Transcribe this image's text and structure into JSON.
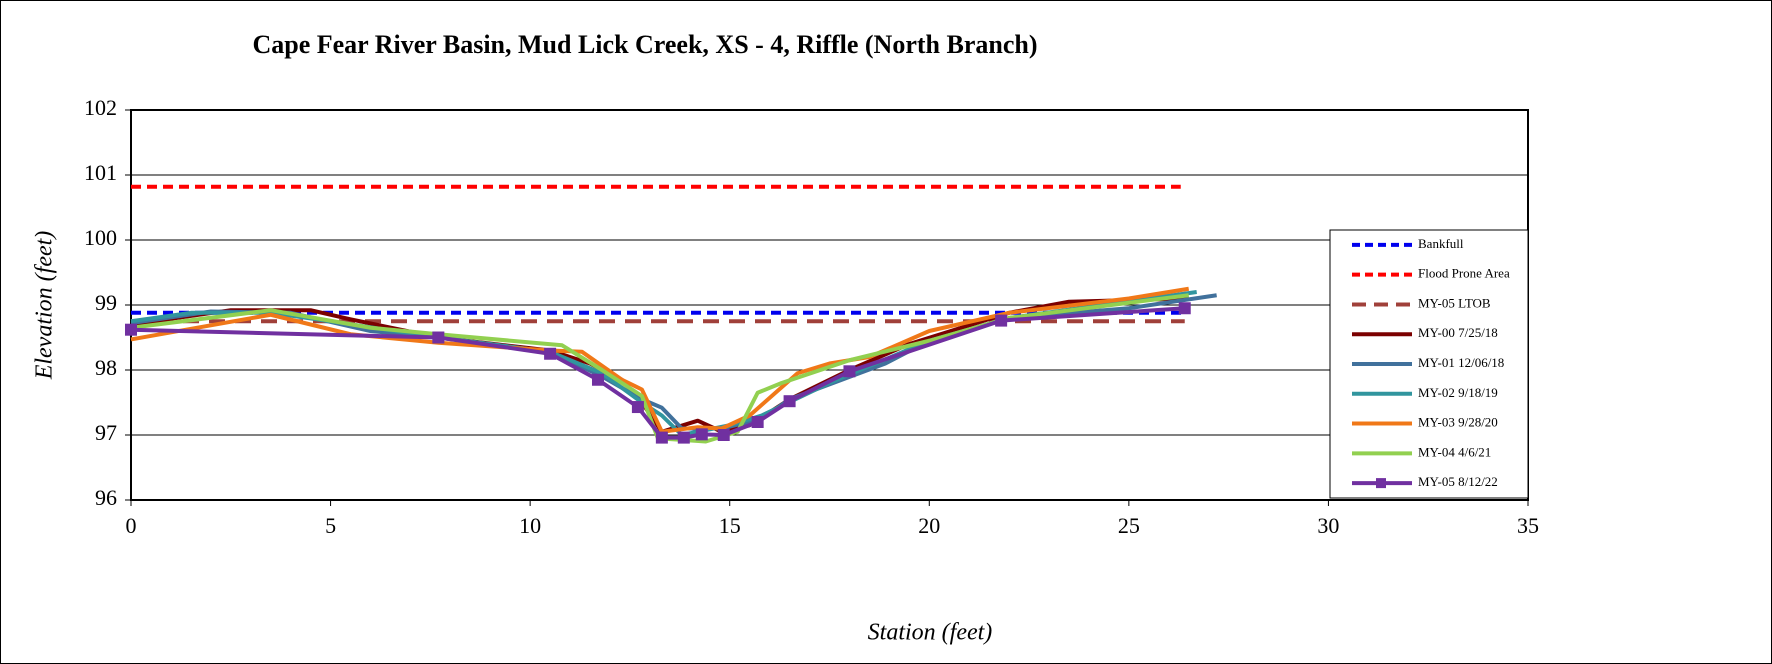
{
  "chart_data": {
    "type": "line",
    "title": "Cape Fear River Basin, Mud Lick Creek, XS - 4, Riffle (North Branch)",
    "xlabel": "Station (feet)",
    "ylabel": "Elevation (feet)",
    "xlim": [
      0,
      35
    ],
    "xticks": [
      0,
      5,
      10,
      15,
      20,
      25,
      30,
      35
    ],
    "ylim": [
      96,
      102
    ],
    "yticks": [
      96,
      97,
      98,
      99,
      100,
      101,
      102
    ],
    "grid": true,
    "legend": "right",
    "series": [
      {
        "name": "Bankfull",
        "color": "#0000ee",
        "dash": true,
        "x": [
          0,
          26.4
        ],
        "values": [
          98.88,
          98.88
        ]
      },
      {
        "name": "Flood Prone Area",
        "color": "#ff0000",
        "dash": true,
        "x": [
          0,
          26.3
        ],
        "values": [
          100.82,
          100.82
        ]
      },
      {
        "name": "MY-05 LTOB",
        "color": "#a0403a",
        "dash": true,
        "x": [
          0,
          26.4
        ],
        "values": [
          98.75,
          98.75
        ]
      },
      {
        "name": "MY-00 7/25/18",
        "color": "#7b0000",
        "x": [
          0,
          2.5,
          4.5,
          5.5,
          7.7,
          10.5,
          11.5,
          12.3,
          12.8,
          13.3,
          14.2,
          14.8,
          15.5,
          16.5,
          18,
          19.5,
          22,
          23.5,
          26.5
        ],
        "values": [
          98.7,
          98.92,
          98.92,
          98.78,
          98.5,
          98.3,
          98.1,
          97.85,
          97.5,
          97.05,
          97.22,
          97.05,
          97.15,
          97.55,
          98.0,
          98.4,
          98.88,
          99.05,
          99.1
        ]
      },
      {
        "name": "MY-01 12/06/18",
        "color": "#41719c",
        "x": [
          0,
          2,
          4,
          6,
          7.7,
          10.5,
          11.8,
          12.8,
          13.3,
          13.8,
          14.8,
          15.8,
          16.5,
          18.9,
          20,
          22,
          25,
          27.2
        ],
        "values": [
          98.72,
          98.9,
          98.88,
          98.6,
          98.5,
          98.28,
          97.9,
          97.55,
          97.42,
          97.1,
          97.1,
          97.25,
          97.55,
          98.1,
          98.45,
          98.8,
          98.95,
          99.15
        ]
      },
      {
        "name": "MY-02 9/18/19",
        "color": "#31959e",
        "x": [
          0,
          1.5,
          3.5,
          5,
          7.7,
          10.5,
          11.8,
          12.8,
          13.3,
          13.8,
          15,
          15.8,
          17.5,
          20,
          22,
          26.7
        ],
        "values": [
          98.75,
          98.88,
          98.88,
          98.75,
          98.5,
          98.28,
          97.95,
          97.5,
          97.3,
          97.0,
          97.15,
          97.3,
          97.8,
          98.45,
          98.8,
          99.2
        ]
      },
      {
        "name": "MY-03 9/28/20",
        "color": "#f07818",
        "x": [
          0,
          3.5,
          5.5,
          7.7,
          10.5,
          11.3,
          12.3,
          12.8,
          13.3,
          14.2,
          14.8,
          15.5,
          16.7,
          17.5,
          18.5,
          20,
          22,
          25,
          26.5
        ],
        "values": [
          98.47,
          98.85,
          98.55,
          98.42,
          98.3,
          98.28,
          97.85,
          97.7,
          97.05,
          97.12,
          97.1,
          97.3,
          97.95,
          98.1,
          98.2,
          98.6,
          98.88,
          99.1,
          99.25
        ]
      },
      {
        "name": "MY-04 4/6/21",
        "color": "#92d050",
        "x": [
          0,
          3.5,
          6,
          7.7,
          10.8,
          11.8,
          12.8,
          13.2,
          14.4,
          15.2,
          15.7,
          16.3,
          18,
          20,
          22,
          26.5
        ],
        "values": [
          98.65,
          98.92,
          98.65,
          98.55,
          98.38,
          98.0,
          97.6,
          96.95,
          96.9,
          97.05,
          97.65,
          97.8,
          98.15,
          98.45,
          98.8,
          99.15
        ]
      },
      {
        "name": "MY-05 8/12/22",
        "color": "#7030a0",
        "marker": "square",
        "x": [
          0,
          7.7,
          10.5,
          11.7,
          12.7,
          13.3,
          13.85,
          14.3,
          14.85,
          15.7,
          16.5,
          18,
          21.8,
          26.4
        ],
        "values": [
          98.62,
          98.5,
          98.25,
          97.85,
          97.43,
          96.96,
          96.96,
          97.01,
          97.0,
          97.2,
          97.52,
          97.98,
          98.76,
          98.95
        ]
      }
    ]
  }
}
